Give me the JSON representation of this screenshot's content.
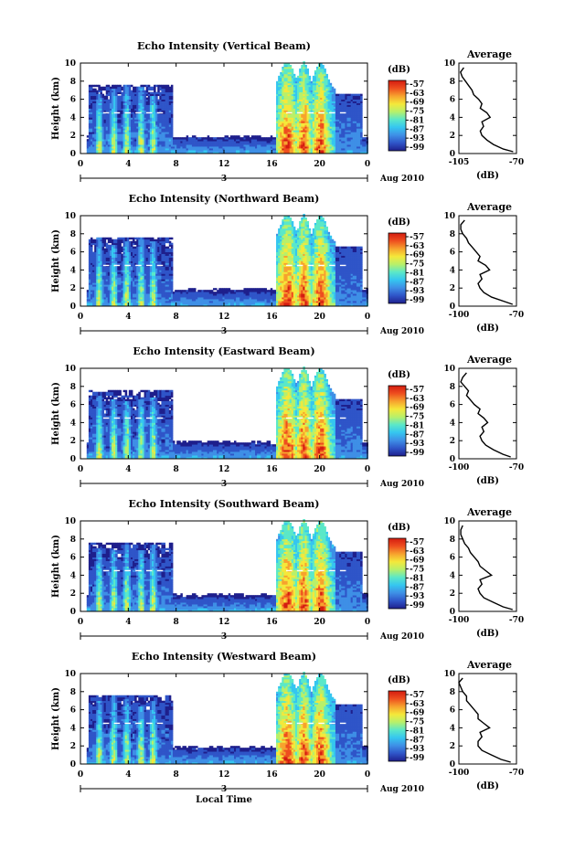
{
  "figure": {
    "panel_titles": [
      "Echo Intensity (Vertical Beam)",
      "Echo Intensity (Northward Beam)",
      "Echo Intensity (Eastward Beam)",
      "Echo Intensity (Southward Beam)",
      "Echo Intensity (Westward Beam)"
    ],
    "ylabel": "Height (km)",
    "date_tick": "3",
    "date_label": "Aug 2010",
    "xlabel": "Local Time",
    "colorbar_unit": "(dB)",
    "colorbar_ticks": [
      "-57",
      "-63",
      "-69",
      "-75",
      "-81",
      "-87",
      "-93",
      "-99"
    ],
    "avg_title": "Average",
    "avg_xlabel": "(dB)",
    "avg_xticks_first": [
      "-105",
      "-70"
    ],
    "avg_xticks_rest": [
      "-100",
      "-70"
    ]
  },
  "colors": {
    "scale": [
      "#1e1f8c",
      "#2f55c8",
      "#3e8fe6",
      "#35c6f0",
      "#5be8c8",
      "#b8f06a",
      "#f5e83a",
      "#f7a22e",
      "#ee4e1f",
      "#d41c10"
    ]
  },
  "chart_data": [
    {
      "type": "heatmap",
      "title": "Echo Intensity (Vertical Beam)",
      "ylabel": "Height (km)",
      "x_ticks": [
        "0",
        "4",
        "8",
        "12",
        "16",
        "20",
        "0"
      ],
      "xlim": [
        0,
        24
      ],
      "ylim": [
        0,
        10
      ],
      "y_ticks": [
        0,
        2,
        4,
        6,
        8,
        10
      ],
      "colorbar": {
        "unit": "(dB)",
        "ticks": [
          -57,
          -63,
          -69,
          -75,
          -81,
          -87,
          -93,
          -99
        ]
      },
      "average_profile": {
        "title": "Average",
        "xlabel": "(dB)",
        "xlim": [
          -105,
          -70
        ],
        "x_ticks": [
          "-105",
          "-70"
        ],
        "height_km": [
          0.2,
          0.5,
          1,
          1.5,
          2,
          2.5,
          3,
          3.5,
          4,
          4.5,
          5,
          5.5,
          6,
          6.5,
          7,
          7.5,
          8,
          8.5,
          9,
          9.5
        ],
        "db": [
          -72,
          -78,
          -84,
          -88,
          -91,
          -92,
          -90,
          -91,
          -86,
          -88,
          -92,
          -91,
          -93,
          -96,
          -97,
          -99,
          -101,
          -103,
          -104,
          -102
        ]
      }
    },
    {
      "type": "heatmap",
      "title": "Echo Intensity (Northward Beam)",
      "ylabel": "Height (km)",
      "x_ticks": [
        "0",
        "4",
        "8",
        "12",
        "16",
        "20",
        "0"
      ],
      "xlim": [
        0,
        24
      ],
      "ylim": [
        0,
        10
      ],
      "y_ticks": [
        0,
        2,
        4,
        6,
        8,
        10
      ],
      "colorbar": {
        "unit": "(dB)",
        "ticks": [
          -57,
          -63,
          -69,
          -75,
          -81,
          -87,
          -93,
          -99
        ]
      },
      "average_profile": {
        "title": "Average",
        "xlabel": "(dB)",
        "xlim": [
          -100,
          -70
        ],
        "x_ticks": [
          "-100",
          "-70"
        ],
        "height_km": [
          0.2,
          0.5,
          1,
          1.5,
          2,
          2.5,
          3,
          3.5,
          4,
          4.5,
          5,
          5.5,
          6,
          6.5,
          7,
          7.5,
          8,
          8.5,
          9,
          9.5
        ],
        "db": [
          -72,
          -76,
          -83,
          -87,
          -89,
          -90,
          -88,
          -89,
          -84,
          -86,
          -90,
          -89,
          -91,
          -93,
          -95,
          -96,
          -98,
          -99,
          -99,
          -97
        ]
      }
    },
    {
      "type": "heatmap",
      "title": "Echo Intensity (Eastward Beam)",
      "ylabel": "Height (km)",
      "x_ticks": [
        "0",
        "4",
        "8",
        "12",
        "16",
        "20",
        "0"
      ],
      "xlim": [
        0,
        24
      ],
      "ylim": [
        0,
        10
      ],
      "y_ticks": [
        0,
        2,
        4,
        6,
        8,
        10
      ],
      "colorbar": {
        "unit": "(dB)",
        "ticks": [
          -57,
          -63,
          -69,
          -75,
          -81,
          -87,
          -93,
          -99
        ]
      },
      "average_profile": {
        "title": "Average",
        "xlabel": "(dB)",
        "xlim": [
          -100,
          -70
        ],
        "x_ticks": [
          "-100",
          "-70"
        ],
        "height_km": [
          0.2,
          0.5,
          1,
          1.5,
          2,
          2.5,
          3,
          3.5,
          4,
          4.5,
          5,
          5.5,
          6,
          6.5,
          7,
          7.5,
          8,
          8.5,
          9,
          9.5
        ],
        "db": [
          -73,
          -77,
          -82,
          -86,
          -88,
          -89,
          -87,
          -88,
          -85,
          -87,
          -90,
          -89,
          -92,
          -94,
          -96,
          -95,
          -97,
          -99,
          -98,
          -96
        ]
      }
    },
    {
      "type": "heatmap",
      "title": "Echo Intensity (Southward Beam)",
      "ylabel": "Height (km)",
      "x_ticks": [
        "0",
        "4",
        "8",
        "12",
        "16",
        "20",
        "0"
      ],
      "xlim": [
        0,
        24
      ],
      "ylim": [
        0,
        10
      ],
      "y_ticks": [
        0,
        2,
        4,
        6,
        8,
        10
      ],
      "colorbar": {
        "unit": "(dB)",
        "ticks": [
          -57,
          -63,
          -69,
          -75,
          -81,
          -87,
          -93,
          -99
        ]
      },
      "average_profile": {
        "title": "Average",
        "xlabel": "(dB)",
        "xlim": [
          -100,
          -70
        ],
        "x_ticks": [
          "-100",
          "-70"
        ],
        "height_km": [
          0.2,
          0.5,
          1,
          1.5,
          2,
          2.5,
          3,
          3.5,
          4,
          4.5,
          5,
          5.5,
          6,
          6.5,
          7,
          7.5,
          8,
          8.5,
          9,
          9.5
        ],
        "db": [
          -72,
          -77,
          -82,
          -87,
          -89,
          -90,
          -88,
          -89,
          -83,
          -86,
          -89,
          -90,
          -92,
          -94,
          -95,
          -97,
          -98,
          -99,
          -99,
          -98
        ]
      }
    },
    {
      "type": "heatmap",
      "title": "Echo Intensity (Westward Beam)",
      "ylabel": "Height (km)",
      "x_ticks": [
        "0",
        "4",
        "8",
        "12",
        "16",
        "20",
        "0"
      ],
      "xlim": [
        0,
        24
      ],
      "ylim": [
        0,
        10
      ],
      "y_ticks": [
        0,
        2,
        4,
        6,
        8,
        10
      ],
      "colorbar": {
        "unit": "(dB)",
        "ticks": [
          -57,
          -63,
          -69,
          -75,
          -81,
          -87,
          -93,
          -99
        ]
      },
      "average_profile": {
        "title": "Average",
        "xlabel": "(dB)",
        "xlim": [
          -100,
          -70
        ],
        "x_ticks": [
          "-100",
          "-70"
        ],
        "height_km": [
          0.2,
          0.5,
          1,
          1.5,
          2,
          2.5,
          3,
          3.5,
          4,
          4.5,
          5,
          5.5,
          6,
          6.5,
          7,
          7.5,
          8,
          8.5,
          9,
          9.5
        ],
        "db": [
          -73,
          -78,
          -83,
          -88,
          -90,
          -90,
          -88,
          -89,
          -84,
          -87,
          -90,
          -90,
          -92,
          -94,
          -96,
          -96,
          -98,
          -99,
          -100,
          -98
        ]
      }
    }
  ]
}
